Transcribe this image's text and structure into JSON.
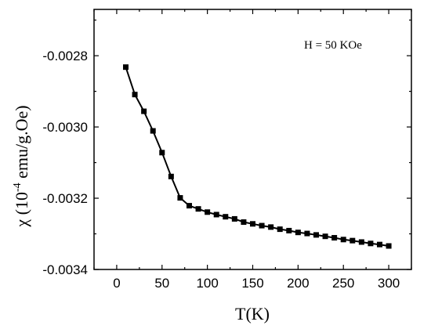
{
  "chart_data": {
    "type": "line",
    "xlabel": "T(K)",
    "ylabel": {
      "prefix": "χ (10",
      "exponent": "-4",
      "suffix": " emu/g.Oe)"
    },
    "annotation": "H = 50 KOe",
    "legend_placement": "top-right",
    "grid": false,
    "xlim": [
      -25,
      325
    ],
    "ylim": [
      -0.0034,
      -0.00267
    ],
    "x_ticks": [
      0,
      50,
      100,
      150,
      200,
      250,
      300
    ],
    "x_tick_labels": [
      "0",
      "50",
      "100",
      "150",
      "200",
      "250",
      "300"
    ],
    "y_ticks": [
      -0.0034,
      -0.0032,
      -0.003,
      -0.0028
    ],
    "y_tick_labels": [
      "-0.0034",
      "-0.0032",
      "-0.0030",
      "-0.0028"
    ],
    "marker": "square",
    "color": "#000000",
    "series": [
      {
        "x": [
          10,
          20,
          30,
          40,
          50,
          60,
          70,
          80,
          90,
          100,
          110,
          120,
          130,
          140,
          150,
          160,
          170,
          180,
          190,
          200,
          210,
          220,
          230,
          240,
          250,
          260,
          270,
          280,
          290,
          300
        ],
        "y": [
          -0.002832,
          -0.002909,
          -0.002956,
          -0.003011,
          -0.003072,
          -0.003139,
          -0.003199,
          -0.003221,
          -0.00323,
          -0.003239,
          -0.003246,
          -0.003252,
          -0.003258,
          -0.003267,
          -0.003272,
          -0.003277,
          -0.003281,
          -0.003287,
          -0.003291,
          -0.003296,
          -0.003299,
          -0.003303,
          -0.003307,
          -0.003311,
          -0.003316,
          -0.003319,
          -0.003323,
          -0.003327,
          -0.00333,
          -0.003334
        ]
      }
    ]
  }
}
